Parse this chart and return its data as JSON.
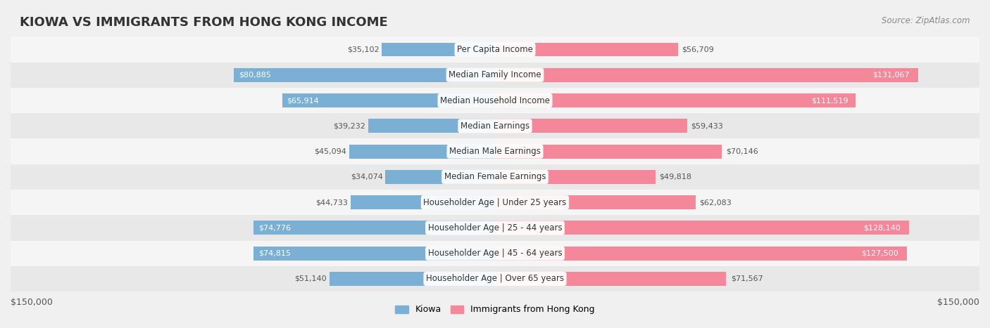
{
  "title": "KIOWA VS IMMIGRANTS FROM HONG KONG INCOME",
  "source": "Source: ZipAtlas.com",
  "categories": [
    "Per Capita Income",
    "Median Family Income",
    "Median Household Income",
    "Median Earnings",
    "Median Male Earnings",
    "Median Female Earnings",
    "Householder Age | Under 25 years",
    "Householder Age | 25 - 44 years",
    "Householder Age | 45 - 64 years",
    "Householder Age | Over 65 years"
  ],
  "kiowa_values": [
    35102,
    80885,
    65914,
    39232,
    45094,
    34074,
    44733,
    74776,
    74815,
    51140
  ],
  "hk_values": [
    56709,
    131067,
    111519,
    59433,
    70146,
    49818,
    62083,
    128140,
    127500,
    71567
  ],
  "kiowa_color": "#7bafd4",
  "hk_color": "#f4889a",
  "kiowa_color_dark": "#5b8fbf",
  "hk_color_dark": "#e8607a",
  "max_value": 150000,
  "xlabel_left": "$150,000",
  "xlabel_right": "$150,000",
  "legend_kiowa": "Kiowa",
  "legend_hk": "Immigrants from Hong Kong",
  "bg_color": "#f0f0f0",
  "row_bg_color": "#e8e8e8",
  "row_bg_alt": "#f5f5f5",
  "label_font_size": 9,
  "title_font_size": 13
}
